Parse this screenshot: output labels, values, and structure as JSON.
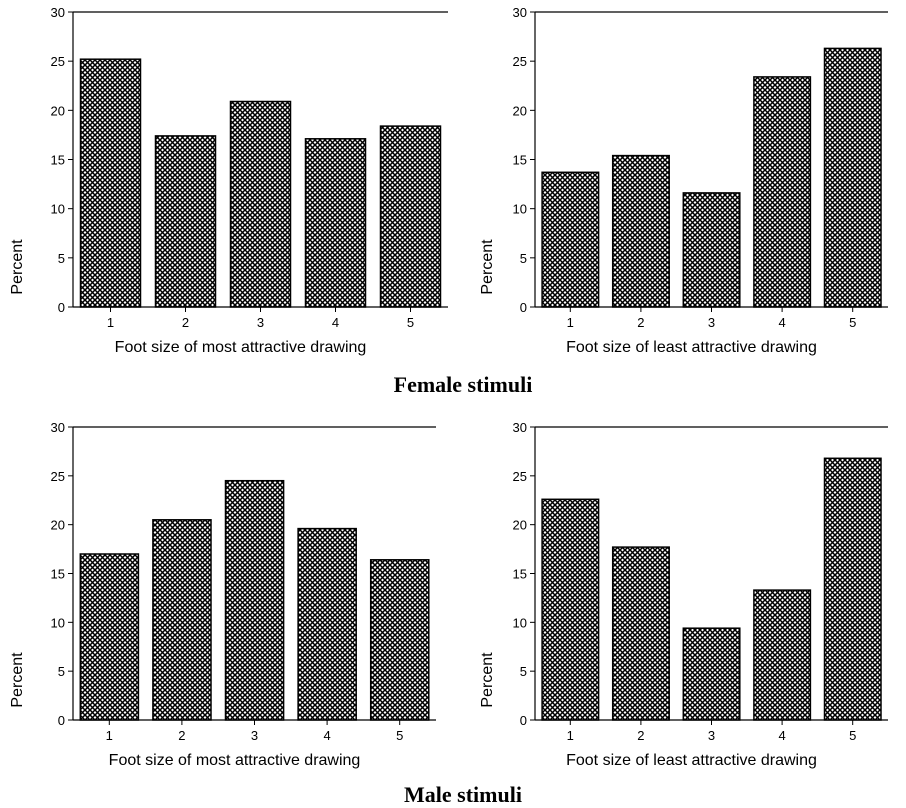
{
  "groups": [
    {
      "title": "Female stimuli"
    },
    {
      "title": "Male stimuli"
    }
  ],
  "chart_data": [
    {
      "type": "bar",
      "group": "Female stimuli",
      "categories": [
        "1",
        "2",
        "3",
        "4",
        "5"
      ],
      "values": [
        25.2,
        17.4,
        20.9,
        17.1,
        18.4
      ],
      "xlabel": "Foot size of most attractive drawing",
      "ylabel": "Percent",
      "ylim": [
        0,
        30
      ],
      "yticks": [
        "0",
        "5",
        "10",
        "15",
        "20",
        "25",
        "30"
      ],
      "grid": false,
      "bar_fill": "crosshatch"
    },
    {
      "type": "bar",
      "group": "Female stimuli",
      "categories": [
        "1",
        "2",
        "3",
        "4",
        "5"
      ],
      "values": [
        13.7,
        15.4,
        11.6,
        23.4,
        26.3
      ],
      "xlabel": "Foot size of least attractive drawing",
      "ylabel": "Percent",
      "ylim": [
        0,
        30
      ],
      "yticks": [
        "0",
        "5",
        "10",
        "15",
        "20",
        "25",
        "30"
      ],
      "grid": false,
      "bar_fill": "crosshatch"
    },
    {
      "type": "bar",
      "group": "Male stimuli",
      "categories": [
        "1",
        "2",
        "3",
        "4",
        "5"
      ],
      "values": [
        17.0,
        20.5,
        24.5,
        19.6,
        16.4
      ],
      "xlabel": "Foot size of most attractive drawing",
      "ylabel": "Percent",
      "ylim": [
        0,
        30
      ],
      "yticks": [
        "0",
        "5",
        "10",
        "15",
        "20",
        "25",
        "30"
      ],
      "grid": false,
      "bar_fill": "crosshatch"
    },
    {
      "type": "bar",
      "group": "Male stimuli",
      "categories": [
        "1",
        "2",
        "3",
        "4",
        "5"
      ],
      "values": [
        22.6,
        17.7,
        9.4,
        13.3,
        26.8
      ],
      "xlabel": "Foot size of least attractive drawing",
      "ylabel": "Percent",
      "ylim": [
        0,
        30
      ],
      "yticks": [
        "0",
        "5",
        "10",
        "15",
        "20",
        "25",
        "30"
      ],
      "grid": false,
      "bar_fill": "crosshatch"
    }
  ]
}
